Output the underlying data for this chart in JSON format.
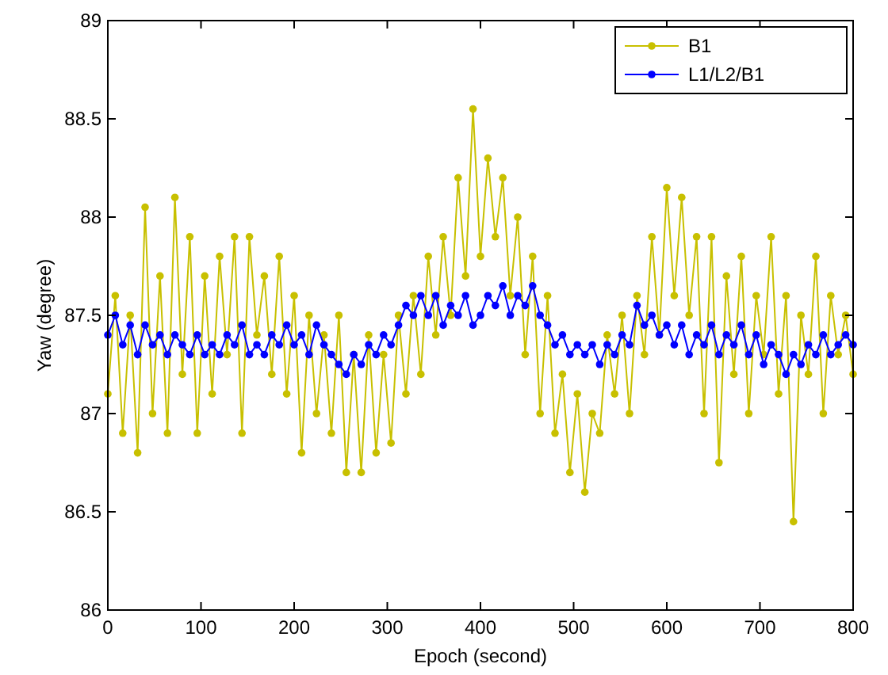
{
  "chart_data": {
    "type": "line",
    "xlabel": "Epoch (second)",
    "ylabel": "Yaw (degree)",
    "x": [
      0,
      8,
      16,
      24,
      32,
      40,
      48,
      56,
      64,
      72,
      80,
      88,
      96,
      104,
      112,
      120,
      128,
      136,
      144,
      152,
      160,
      168,
      176,
      184,
      192,
      200,
      208,
      216,
      224,
      232,
      240,
      248,
      256,
      264,
      272,
      280,
      288,
      296,
      304,
      312,
      320,
      328,
      336,
      344,
      352,
      360,
      368,
      376,
      384,
      392,
      400,
      408,
      416,
      424,
      432,
      440,
      448,
      456,
      464,
      472,
      480,
      488,
      496,
      504,
      512,
      520,
      528,
      536,
      544,
      552,
      560,
      568,
      576,
      584,
      592,
      600,
      608,
      616,
      624,
      632,
      640,
      648,
      656,
      664,
      672,
      680,
      688,
      696,
      704,
      712,
      720,
      728,
      736,
      744,
      752,
      760,
      768,
      776,
      784,
      792,
      800
    ],
    "series": [
      {
        "name": "B1",
        "color": "#c8c000",
        "values": [
          87.1,
          87.6,
          86.9,
          87.5,
          86.8,
          88.05,
          87.0,
          87.7,
          86.9,
          88.1,
          87.2,
          87.9,
          86.9,
          87.7,
          87.1,
          87.8,
          87.3,
          87.9,
          86.9,
          87.9,
          87.4,
          87.7,
          87.2,
          87.8,
          87.1,
          87.6,
          86.8,
          87.5,
          87.0,
          87.4,
          86.9,
          87.5,
          86.7,
          87.3,
          86.7,
          87.4,
          86.8,
          87.3,
          86.85,
          87.5,
          87.1,
          87.6,
          87.2,
          87.8,
          87.4,
          87.9,
          87.5,
          88.2,
          87.7,
          88.55,
          87.8,
          88.3,
          87.9,
          88.2,
          87.6,
          88.0,
          87.3,
          87.8,
          87.0,
          87.6,
          86.9,
          87.2,
          86.7,
          87.1,
          86.6,
          87.0,
          86.9,
          87.4,
          87.1,
          87.5,
          87.0,
          87.6,
          87.3,
          87.9,
          87.4,
          88.15,
          87.6,
          88.1,
          87.5,
          87.9,
          87.0,
          87.9,
          86.75,
          87.7,
          87.2,
          87.8,
          87.0,
          87.6,
          87.3,
          87.9,
          87.1,
          87.6,
          86.45,
          87.5,
          87.2,
          87.8,
          87.0,
          87.6,
          87.3,
          87.5,
          87.2
        ]
      },
      {
        "name": "L1/L2/B1",
        "color": "#0000ff",
        "values": [
          87.4,
          87.5,
          87.35,
          87.45,
          87.3,
          87.45,
          87.35,
          87.4,
          87.3,
          87.4,
          87.35,
          87.3,
          87.4,
          87.3,
          87.35,
          87.3,
          87.4,
          87.35,
          87.45,
          87.3,
          87.35,
          87.3,
          87.4,
          87.35,
          87.45,
          87.35,
          87.4,
          87.3,
          87.45,
          87.35,
          87.3,
          87.25,
          87.2,
          87.3,
          87.25,
          87.35,
          87.3,
          87.4,
          87.35,
          87.45,
          87.55,
          87.5,
          87.6,
          87.5,
          87.6,
          87.45,
          87.55,
          87.5,
          87.6,
          87.45,
          87.5,
          87.6,
          87.55,
          87.65,
          87.5,
          87.6,
          87.55,
          87.65,
          87.5,
          87.45,
          87.35,
          87.4,
          87.3,
          87.35,
          87.3,
          87.35,
          87.25,
          87.35,
          87.3,
          87.4,
          87.35,
          87.55,
          87.45,
          87.5,
          87.4,
          87.45,
          87.35,
          87.45,
          87.3,
          87.4,
          87.35,
          87.45,
          87.3,
          87.4,
          87.35,
          87.45,
          87.3,
          87.4,
          87.25,
          87.35,
          87.3,
          87.2,
          87.3,
          87.25,
          87.35,
          87.3,
          87.4,
          87.3,
          87.35,
          87.4,
          87.35
        ]
      }
    ],
    "xlim": [
      0,
      800
    ],
    "xticks": [
      0,
      100,
      200,
      300,
      400,
      500,
      600,
      700,
      800
    ],
    "ylim": [
      86,
      89
    ],
    "yticks": [
      86,
      86.5,
      87,
      87.5,
      88,
      88.5,
      89
    ],
    "legend": "top right",
    "marker": "circle",
    "line_style": "solid"
  }
}
